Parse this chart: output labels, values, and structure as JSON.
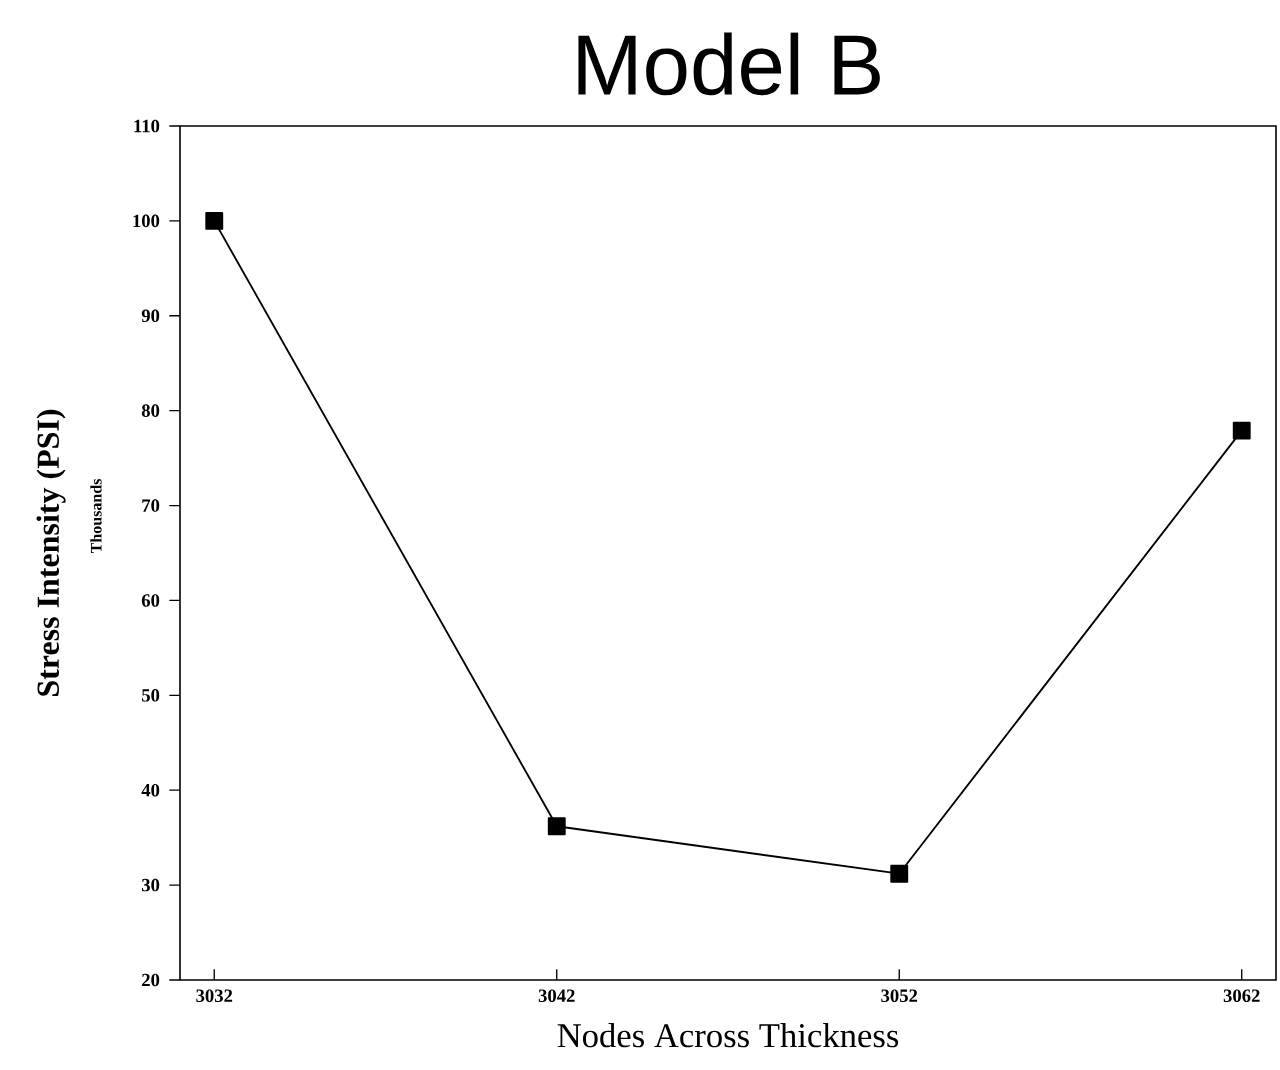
{
  "chart_data": {
    "type": "line",
    "title": "Model B",
    "xlabel": "Nodes Across Thickness",
    "ylabel": "Stress Intensity (PSI)",
    "annotations": [
      "Thousands"
    ],
    "x": [
      3032,
      3042,
      3052,
      3062
    ],
    "series": [
      {
        "color": "#000000",
        "values": [
          100,
          36.2,
          31.2,
          77.9
        ]
      }
    ],
    "xlim": [
      3031,
      3063
    ],
    "xticks": [
      3032,
      3042,
      3052,
      3062
    ],
    "ylim": [
      20,
      110
    ],
    "yticks": [
      20,
      30,
      40,
      50,
      60,
      70,
      80,
      90,
      100,
      110
    ],
    "marker": "square",
    "line_style": "solid"
  }
}
